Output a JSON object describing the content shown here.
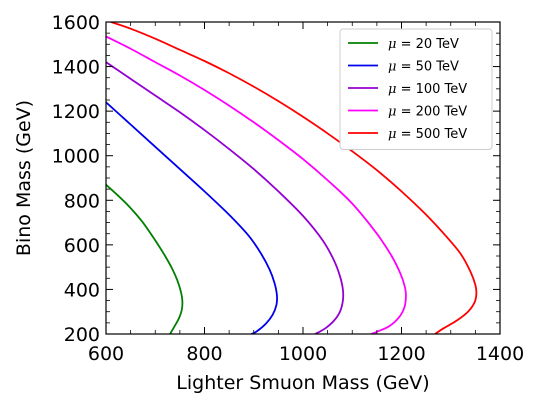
{
  "chart_data": {
    "type": "line",
    "xlabel": "Lighter Smuon Mass (GeV)",
    "ylabel": "Bino Mass (GeV)",
    "xlim": [
      600,
      1400
    ],
    "ylim": [
      200,
      1600
    ],
    "xticks": [
      600,
      800,
      1000,
      1200,
      1400
    ],
    "yticks": [
      200,
      400,
      600,
      800,
      1000,
      1200,
      1400,
      1600
    ],
    "grid": false,
    "legend_position": "top-right",
    "series": [
      {
        "name": "μ = 20 TeV",
        "legend_symbol": "μ",
        "legend_value": "= 20 TeV",
        "color": "#008000",
        "points": [
          [
            600,
            870
          ],
          [
            625,
            820
          ],
          [
            650,
            765
          ],
          [
            675,
            700
          ],
          [
            700,
            620
          ],
          [
            720,
            550
          ],
          [
            735,
            490
          ],
          [
            745,
            440
          ],
          [
            752,
            390
          ],
          [
            755,
            350
          ],
          [
            754,
            310
          ],
          [
            748,
            270
          ],
          [
            738,
            230
          ],
          [
            730,
            200
          ]
        ]
      },
      {
        "name": "μ = 50 TeV",
        "legend_symbol": "μ",
        "legend_value": "= 50 TeV",
        "color": "#0000ee",
        "points": [
          [
            600,
            1240
          ],
          [
            650,
            1140
          ],
          [
            700,
            1040
          ],
          [
            750,
            940
          ],
          [
            800,
            840
          ],
          [
            850,
            735
          ],
          [
            890,
            640
          ],
          [
            915,
            560
          ],
          [
            932,
            490
          ],
          [
            942,
            430
          ],
          [
            947,
            375
          ],
          [
            946,
            330
          ],
          [
            938,
            285
          ],
          [
            924,
            245
          ],
          [
            905,
            210
          ],
          [
            895,
            200
          ]
        ]
      },
      {
        "name": "μ = 100 TeV",
        "legend_symbol": "μ",
        "legend_value": "= 100 TeV",
        "color": "#9400d3",
        "points": [
          [
            600,
            1420
          ],
          [
            650,
            1345
          ],
          [
            700,
            1270
          ],
          [
            750,
            1195
          ],
          [
            800,
            1115
          ],
          [
            850,
            1030
          ],
          [
            900,
            940
          ],
          [
            950,
            840
          ],
          [
            1000,
            730
          ],
          [
            1040,
            620
          ],
          [
            1063,
            530
          ],
          [
            1075,
            460
          ],
          [
            1081,
            400
          ],
          [
            1081,
            350
          ],
          [
            1075,
            300
          ],
          [
            1063,
            260
          ],
          [
            1045,
            225
          ],
          [
            1025,
            200
          ]
        ]
      },
      {
        "name": "μ = 200 TeV",
        "legend_symbol": "μ",
        "legend_value": "= 200 TeV",
        "color": "#ff00ff",
        "points": [
          [
            600,
            1535
          ],
          [
            650,
            1480
          ],
          [
            700,
            1420
          ],
          [
            750,
            1360
          ],
          [
            800,
            1295
          ],
          [
            850,
            1225
          ],
          [
            900,
            1150
          ],
          [
            950,
            1070
          ],
          [
            1000,
            985
          ],
          [
            1050,
            890
          ],
          [
            1100,
            785
          ],
          [
            1150,
            650
          ],
          [
            1180,
            550
          ],
          [
            1198,
            470
          ],
          [
            1207,
            410
          ],
          [
            1209,
            370
          ],
          [
            1206,
            320
          ],
          [
            1195,
            275
          ],
          [
            1175,
            235
          ],
          [
            1150,
            210
          ],
          [
            1138,
            200
          ]
        ]
      },
      {
        "name": "μ = 500 TeV",
        "legend_symbol": "μ",
        "legend_value": "= 500 TeV",
        "color": "#ff0000",
        "points": [
          [
            610,
            1600
          ],
          [
            650,
            1570
          ],
          [
            700,
            1525
          ],
          [
            750,
            1475
          ],
          [
            800,
            1425
          ],
          [
            850,
            1370
          ],
          [
            900,
            1310
          ],
          [
            950,
            1245
          ],
          [
            1000,
            1175
          ],
          [
            1050,
            1100
          ],
          [
            1100,
            1020
          ],
          [
            1150,
            935
          ],
          [
            1200,
            840
          ],
          [
            1250,
            735
          ],
          [
            1290,
            640
          ],
          [
            1320,
            560
          ],
          [
            1340,
            480
          ],
          [
            1350,
            420
          ],
          [
            1352,
            380
          ],
          [
            1348,
            340
          ],
          [
            1335,
            300
          ],
          [
            1312,
            260
          ],
          [
            1285,
            225
          ],
          [
            1268,
            200
          ]
        ]
      }
    ]
  }
}
